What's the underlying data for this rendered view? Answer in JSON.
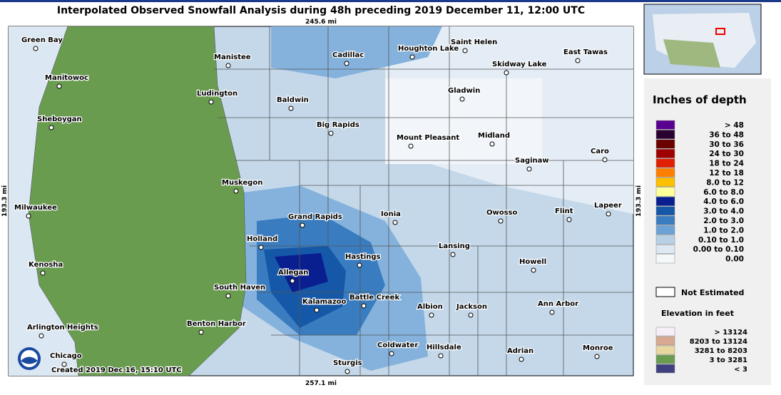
{
  "title": "Interpolated Observed Snowfall Analysis during 48h preceding 2019 December 11, 12:00 UTC",
  "scale": {
    "top": "245.6 mi",
    "bottom": "257.1 mi",
    "left": "193.3 mi",
    "right": "193.3 mi"
  },
  "created": "Created 2019 Dec 16, 15:10 UTC",
  "cities": [
    "Green Bay",
    "Manistee",
    "Cadillac",
    "Houghton Lake",
    "Saint Helen",
    "East Tawas",
    "Skidway Lake",
    "Manitowoc",
    "Ludington",
    "Baldwin",
    "Gladwin",
    "Sheboygan",
    "Big Rapids",
    "Mount Pleasant",
    "Midland",
    "Caro",
    "Saginaw",
    "Muskegon",
    "Milwaukee",
    "Grand Rapids",
    "Ionia",
    "Owosso",
    "Flint",
    "Lapeer",
    "Holland",
    "Lansing",
    "Hastings",
    "Kenosha",
    "Allegan",
    "Howell",
    "South Haven",
    "Battle Creek",
    "Kalamazoo",
    "Albion",
    "Jackson",
    "Ann Arbor",
    "Arlington Heights",
    "Benton Harbor",
    "Coldwater",
    "Hillsdale",
    "Adrian",
    "Monroe",
    "Chicago",
    "Sturgis"
  ],
  "legend": {
    "title": "Inches of depth",
    "entries": [
      {
        "color": "#5a0091",
        "label": "> 48"
      },
      {
        "color": "#2a0030",
        "label": "36 to 48"
      },
      {
        "color": "#6a0000",
        "label": "30 to 36"
      },
      {
        "color": "#a00000",
        "label": "24 to 30"
      },
      {
        "color": "#e02000",
        "label": "18 to 24"
      },
      {
        "color": "#ff8000",
        "label": "12 to 18"
      },
      {
        "color": "#ffc000",
        "label": "8.0 to 12"
      },
      {
        "color": "#ffff99",
        "label": "6.0 to 8.0"
      },
      {
        "color": "#0a1f8f",
        "label": "4.0 to 6.0"
      },
      {
        "color": "#1558a8",
        "label": "3.0 to 4.0"
      },
      {
        "color": "#3a7cc0",
        "label": "2.0 to 3.0"
      },
      {
        "color": "#6ca3d6",
        "label": "1.0 to 2.0"
      },
      {
        "color": "#b7d0e6",
        "label": "0.10 to 1.0"
      },
      {
        "color": "#dde8f2",
        "label": "0.00 to 0.10"
      },
      {
        "color": "#f5f8fb",
        "label": "0.00"
      }
    ],
    "not_estimated": "Not Estimated",
    "elevation_title": "Elevation in feet",
    "elevation": [
      {
        "color": "#f8eefa",
        "label": "> 13124"
      },
      {
        "color": "#d8a890",
        "label": "8203 to 13124"
      },
      {
        "color": "#e8d8a0",
        "label": "3281 to 8203"
      },
      {
        "color": "#6a9c50",
        "label": "3 to 3281"
      },
      {
        "color": "#404080",
        "label": "< 3"
      }
    ]
  }
}
